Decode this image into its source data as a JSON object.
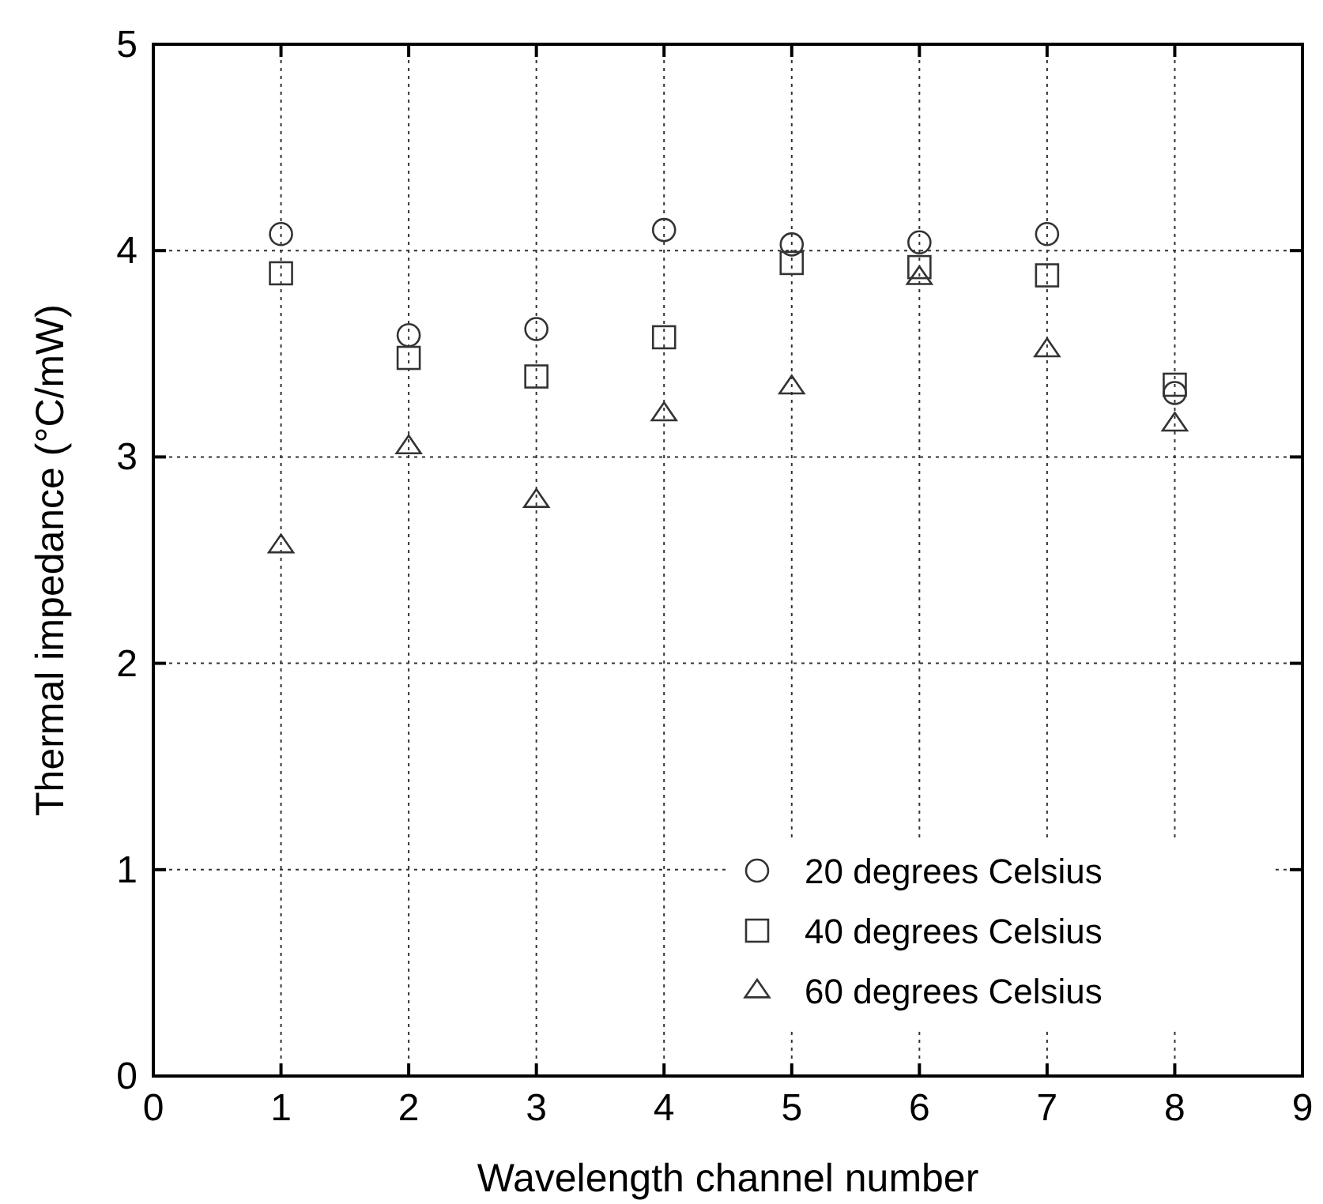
{
  "chart_data": {
    "type": "scatter",
    "xlabel": "Wavelength channel number",
    "ylabel": "Thermal impedance (°C/mW)",
    "x": [
      1,
      2,
      3,
      4,
      5,
      6,
      7,
      8
    ],
    "series": [
      {
        "name": "20 degrees Celsius",
        "color": "#333333",
        "marker": "circle",
        "values": [
          4.08,
          3.59,
          3.62,
          4.1,
          4.03,
          4.04,
          4.08,
          3.31
        ]
      },
      {
        "name": "40 degrees Celsius",
        "color": "#333333",
        "marker": "square",
        "values": [
          3.89,
          3.48,
          3.39,
          3.58,
          3.94,
          3.92,
          3.88,
          3.35
        ]
      },
      {
        "name": "60 degrees Celsius",
        "color": "#333333",
        "marker": "triangle",
        "values": [
          2.57,
          3.05,
          2.79,
          3.21,
          3.34,
          3.87,
          3.52,
          3.16
        ]
      }
    ],
    "xlim": [
      0,
      9
    ],
    "xticks": [
      0,
      1,
      2,
      3,
      4,
      5,
      6,
      7,
      8,
      9
    ],
    "ylim": [
      0,
      5
    ],
    "yticks": [
      0,
      1,
      2,
      3,
      4,
      5
    ],
    "grid": true,
    "legend": "bottom right"
  }
}
